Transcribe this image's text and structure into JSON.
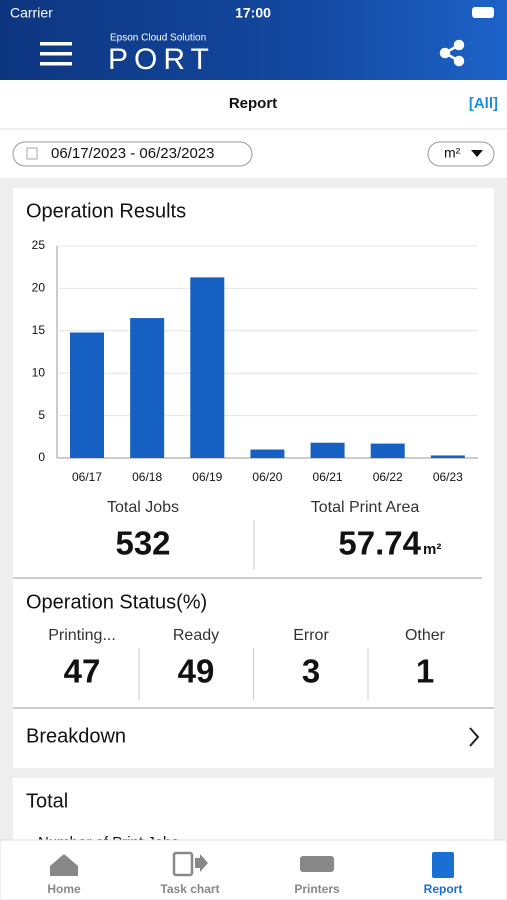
{
  "status_bar": {
    "carrier": "Carrier",
    "time": "17:00"
  },
  "header": {
    "brand": "Epson Cloud Solution",
    "product": "PORT"
  },
  "nav": {
    "title": "Report",
    "filter": "[All]"
  },
  "filters": {
    "date_range": "06/17/2023 - 06/23/2023",
    "unit": "m²"
  },
  "operation_results": {
    "title": "Operation Results",
    "chart_data": {
      "type": "bar",
      "categories": [
        "06/17",
        "06/18",
        "06/19",
        "06/20",
        "06/21",
        "06/22",
        "06/23"
      ],
      "values": [
        14.8,
        16.5,
        21.3,
        1.0,
        1.8,
        1.7,
        0.3
      ],
      "color": "#1560c2",
      "ylim": [
        0,
        25
      ],
      "yticks": [
        0,
        5,
        10,
        15,
        20,
        25
      ],
      "grid": true
    },
    "total_jobs": {
      "label": "Total Jobs",
      "value": "532"
    },
    "total_print_area": {
      "label": "Total Print Area",
      "value": "57.74"
    }
  },
  "operation_status": {
    "title": "Operation Status(%)",
    "items": [
      {
        "label": "Printing...",
        "value": "47"
      },
      {
        "label": "Ready",
        "value": "49"
      },
      {
        "label": "Error",
        "value": "3"
      },
      {
        "label": "Other",
        "value": "1"
      }
    ]
  },
  "breakdown": {
    "label": "Breakdown"
  },
  "total": {
    "title": "Total",
    "subtitle": "Number of Print Jobs"
  },
  "tabs": [
    "Home",
    "Task chart",
    "Printers",
    "Report"
  ]
}
